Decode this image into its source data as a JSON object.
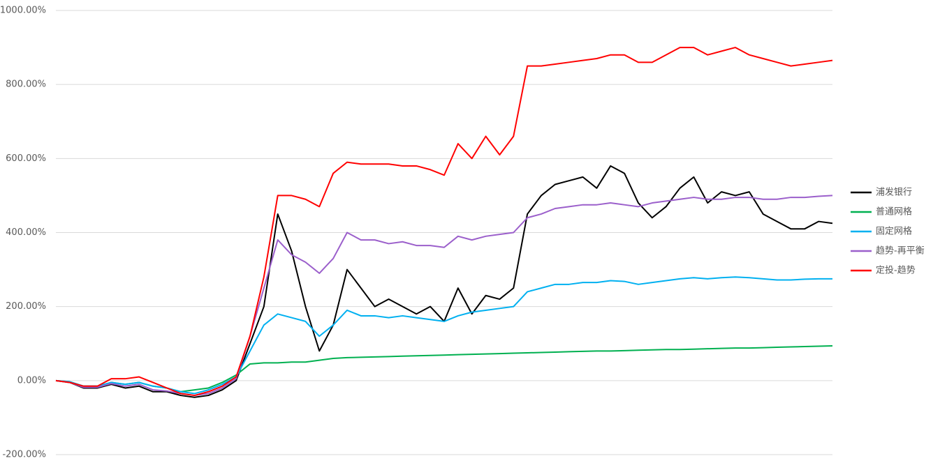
{
  "chart_data": {
    "type": "line",
    "ylim": [
      -200,
      1000
    ],
    "yticks": [
      {
        "value": -200,
        "label": "-200.00%"
      },
      {
        "value": 0,
        "label": "0.00%"
      },
      {
        "value": 200,
        "label": "200.00%"
      },
      {
        "value": 400,
        "label": "400.00%"
      },
      {
        "value": 600,
        "label": "600.00%"
      },
      {
        "value": 800,
        "label": "800.00%"
      },
      {
        "value": 1000,
        "label": "1000.00%"
      }
    ],
    "grid": true,
    "legend": "right",
    "series": [
      {
        "name": "浦发银行",
        "color": "#000000",
        "values": [
          0,
          -5,
          -20,
          -20,
          -10,
          -20,
          -15,
          -30,
          -30,
          -40,
          -45,
          -40,
          -25,
          0,
          100,
          200,
          450,
          350,
          200,
          80,
          150,
          300,
          250,
          200,
          220,
          200,
          180,
          200,
          160,
          250,
          180,
          230,
          220,
          250,
          450,
          500,
          530,
          540,
          550,
          520,
          580,
          560,
          480,
          440,
          470,
          520,
          550,
          480,
          510,
          500,
          510,
          450,
          430,
          410,
          410,
          430,
          425
        ]
      },
      {
        "name": "普通网格",
        "color": "#00b050",
        "values": [
          0,
          -3,
          -15,
          -15,
          -5,
          -10,
          -5,
          -15,
          -20,
          -30,
          -25,
          -20,
          -5,
          15,
          45,
          48,
          48,
          50,
          50,
          55,
          60,
          62,
          63,
          64,
          65,
          66,
          67,
          68,
          69,
          70,
          71,
          72,
          73,
          74,
          75,
          76,
          77,
          78,
          79,
          80,
          80,
          81,
          82,
          83,
          84,
          84,
          85,
          86,
          87,
          88,
          88,
          89,
          90,
          91,
          92,
          93,
          94
        ]
      },
      {
        "name": "固定网格",
        "color": "#00b0f0",
        "values": [
          0,
          -3,
          -15,
          -15,
          -5,
          -10,
          -5,
          -15,
          -20,
          -30,
          -35,
          -25,
          -10,
          10,
          80,
          150,
          180,
          170,
          160,
          120,
          150,
          190,
          175,
          175,
          170,
          175,
          170,
          165,
          160,
          175,
          185,
          190,
          195,
          200,
          240,
          250,
          260,
          260,
          265,
          265,
          270,
          268,
          260,
          265,
          270,
          275,
          278,
          275,
          278,
          280,
          278,
          275,
          272,
          272,
          274,
          275,
          275
        ]
      },
      {
        "name": "趋势-再平衡",
        "color": "#9b5fcb",
        "values": [
          0,
          -5,
          -18,
          -18,
          -8,
          -15,
          -10,
          -25,
          -28,
          -35,
          -40,
          -35,
          -20,
          5,
          120,
          250,
          380,
          340,
          320,
          290,
          330,
          400,
          380,
          380,
          370,
          375,
          365,
          365,
          360,
          390,
          380,
          390,
          395,
          400,
          440,
          450,
          465,
          470,
          475,
          475,
          480,
          475,
          470,
          480,
          485,
          490,
          495,
          490,
          490,
          495,
          495,
          490,
          490,
          495,
          495,
          498,
          500
        ]
      },
      {
        "name": "定投-趋势",
        "color": "#ff0000",
        "values": [
          0,
          -5,
          -15,
          -15,
          5,
          5,
          10,
          -5,
          -20,
          -35,
          -40,
          -30,
          -15,
          10,
          120,
          280,
          500,
          500,
          490,
          470,
          560,
          590,
          585,
          585,
          585,
          580,
          580,
          570,
          555,
          640,
          600,
          660,
          610,
          660,
          850,
          850,
          855,
          860,
          865,
          870,
          880,
          880,
          860,
          860,
          880,
          900,
          900,
          880,
          890,
          900,
          880,
          870,
          860,
          850,
          855,
          860,
          865
        ]
      }
    ]
  }
}
